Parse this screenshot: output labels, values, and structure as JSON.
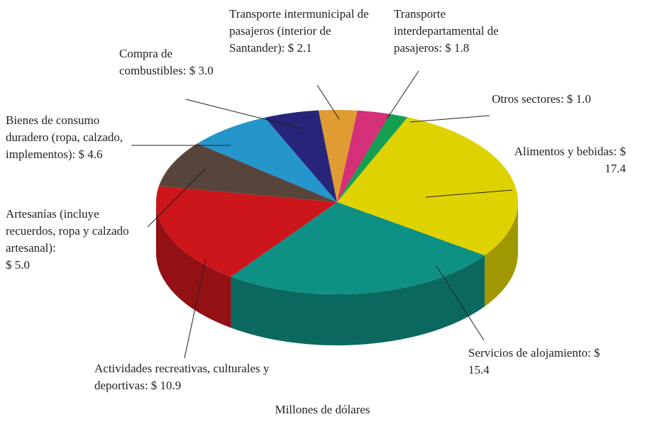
{
  "chart_data": {
    "type": "pie3d",
    "categories": [
      "Alimentos y bebidas:",
      "Servicios de alojamiento:",
      "Actividades recreativas, culturales y deportivas:",
      "Artesanías (incluye recuerdos, ropa y calzado artesanal):",
      "Bienes de consumo duradero (ropa, calzado, implementos):",
      "Compra de combustibles:",
      "Transporte intermunicipal de pasajeros (interior de Santander):",
      "Transporte interdepartamental de pasajeros:",
      "Otros sectores:"
    ],
    "values": [
      17.4,
      15.4,
      10.9,
      5.0,
      4.6,
      3.0,
      2.1,
      1.8,
      1.0
    ],
    "value_labels": [
      "$ 17.4",
      "$ 15.4",
      "$ 10.9",
      "$ 5.0",
      "$ 4.6",
      "$ 3.0",
      "$ 2.1",
      "$ 1.8",
      "$ 1.0"
    ],
    "colors": [
      "#ded300",
      "#0f9084",
      "#cc161c",
      "#57453b",
      "#2596cc",
      "#27257a",
      "#e09b33",
      "#d52f78",
      "#14a050"
    ],
    "caption": "Millones de dólares"
  }
}
